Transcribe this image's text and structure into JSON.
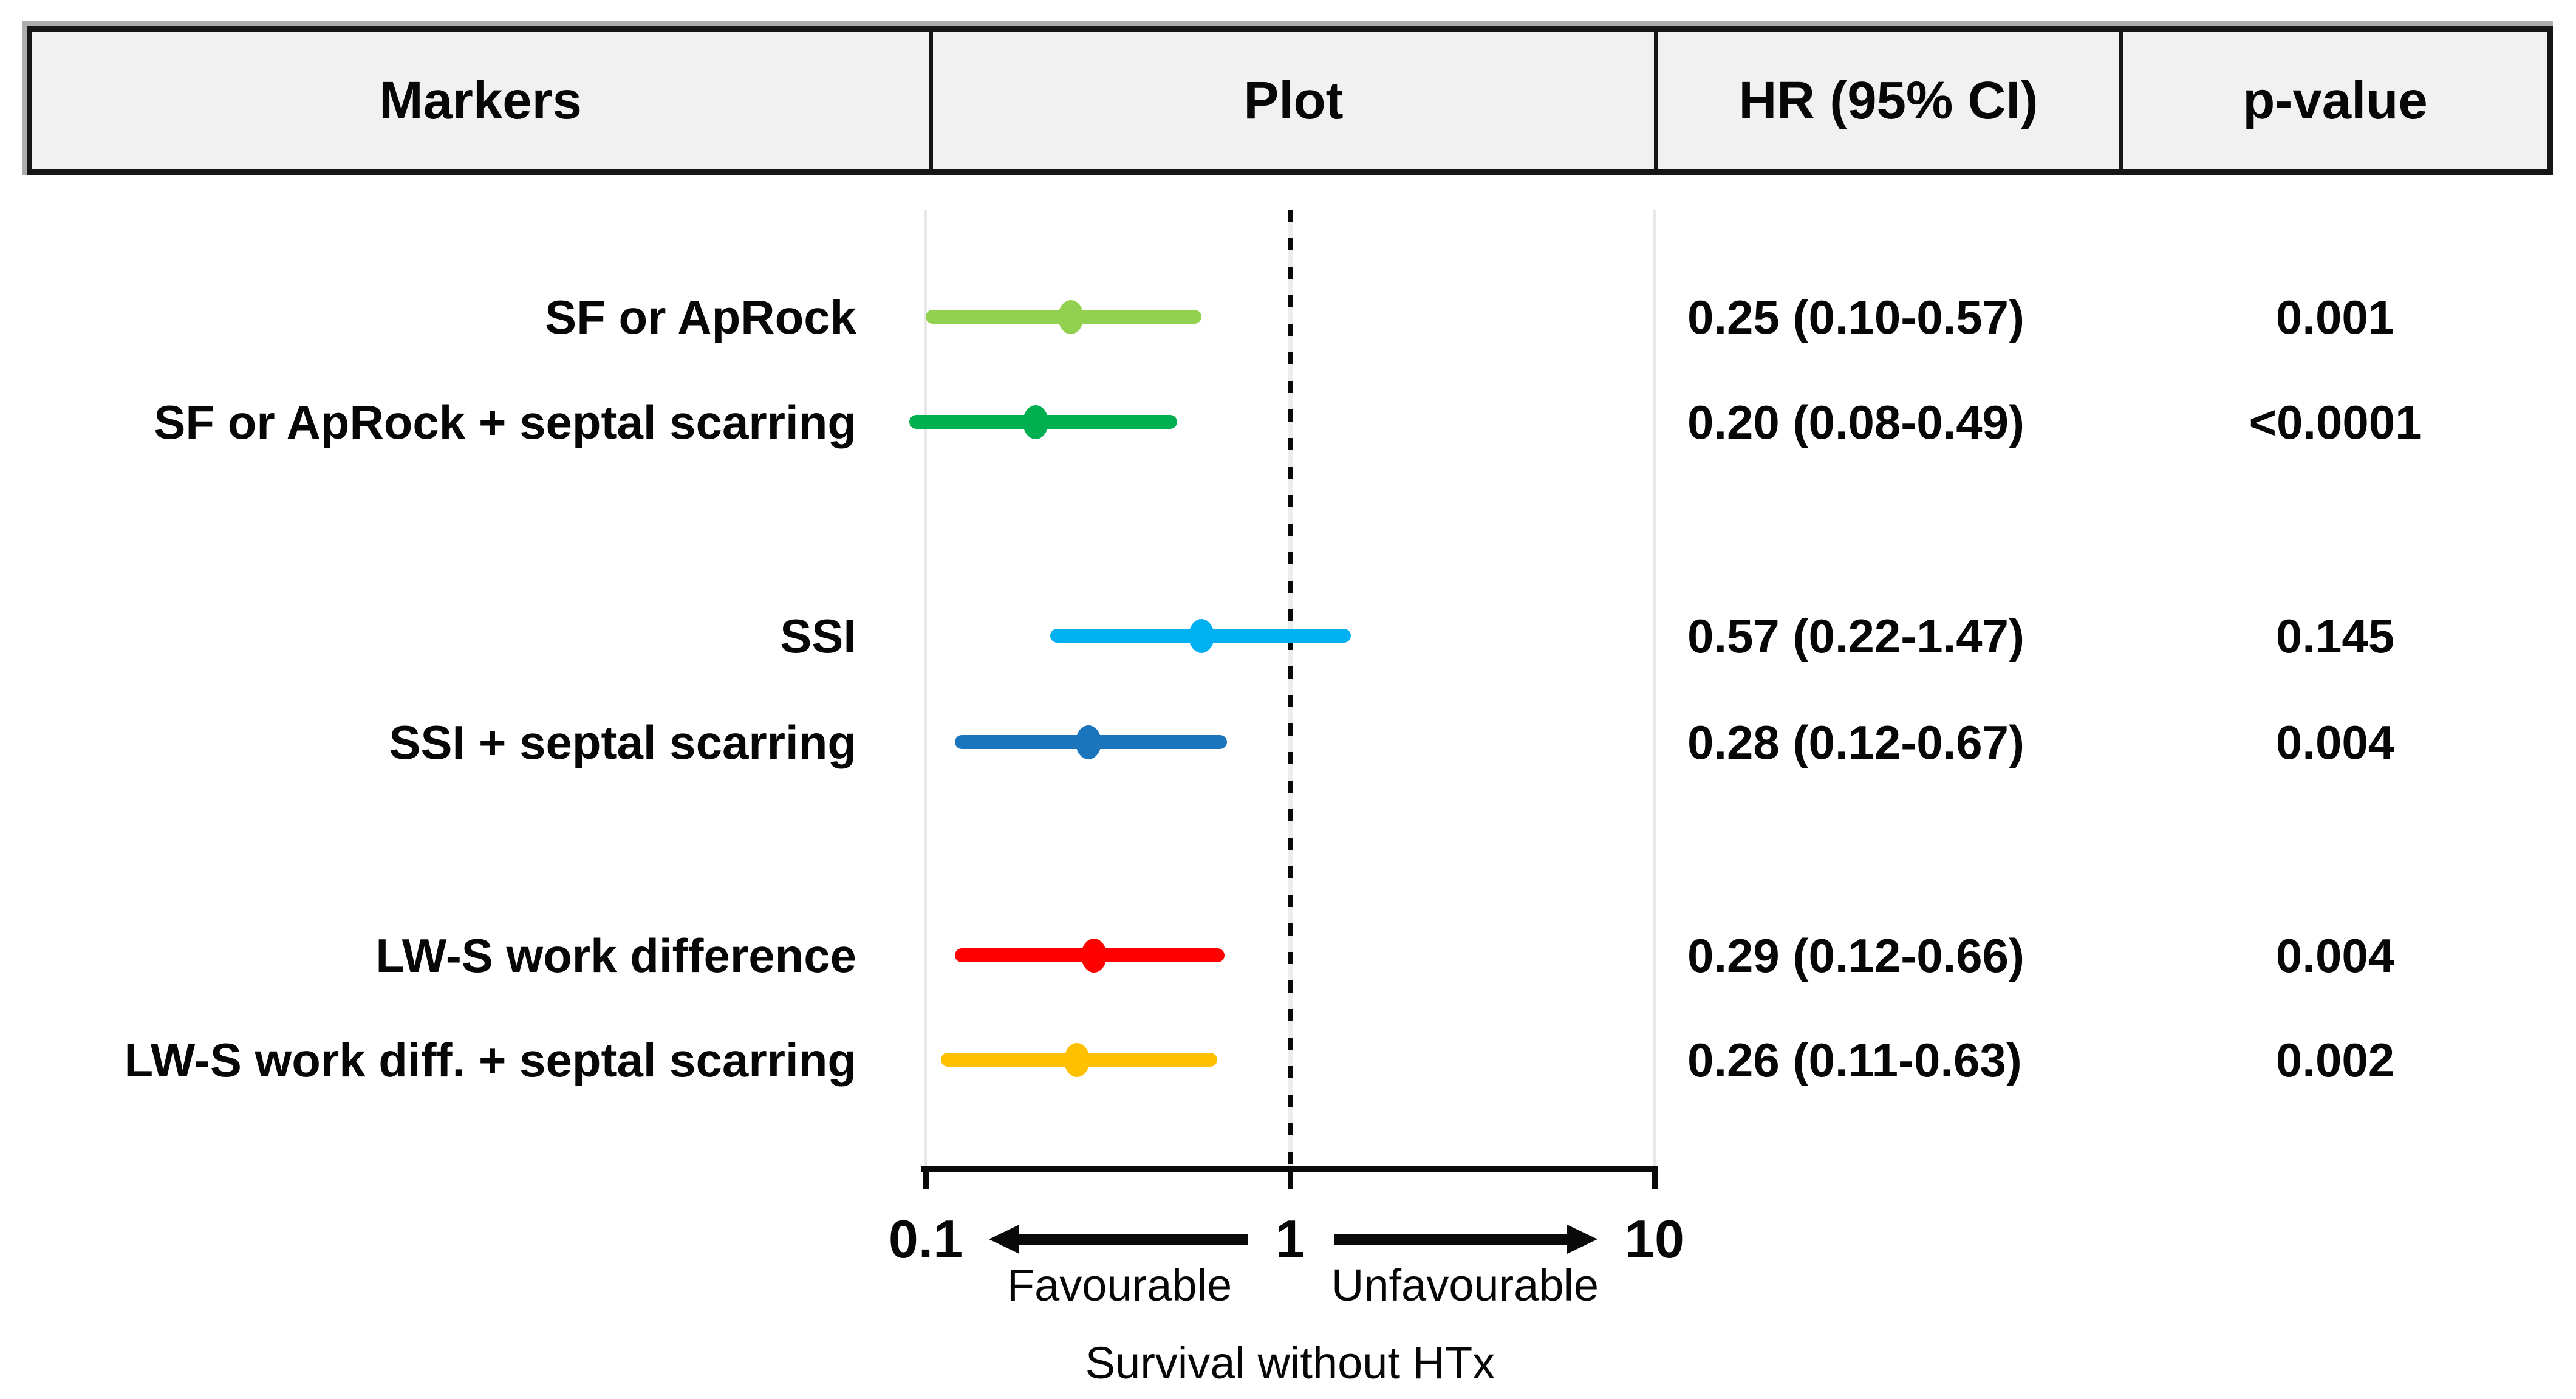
{
  "colors": {
    "header_bg": "#F1F1F1",
    "border": "#161616",
    "panel_guide": "#E8E8E8",
    "reference_line": "#0A0A0A"
  },
  "chart_data": {
    "type": "forest",
    "columns": [
      "Markers",
      "Plot",
      "HR (95% CI)",
      "p-value"
    ],
    "x_scale": "log10",
    "x_range": [
      0.1,
      10
    ],
    "x_ticks": [
      "0.1",
      "1",
      "10"
    ],
    "x_tick_values": [
      0.1,
      1,
      10
    ],
    "reference_value": 1,
    "direction_labels": {
      "left": "Favourable",
      "right": "Unfavourable"
    },
    "xlabel": "Survival without HTx",
    "rows": [
      {
        "label": "SF or ApRock",
        "hr": 0.25,
        "ci_low": 0.1,
        "ci_high": 0.57,
        "hr_text": "0.25 (0.10-0.57)",
        "p": "0.001",
        "color": "#92D050",
        "group": 1
      },
      {
        "label": "SF or ApRock + septal scarring",
        "hr": 0.2,
        "ci_low": 0.08,
        "ci_high": 0.49,
        "hr_text": "0.20 (0.08-0.49)",
        "p": "<0.0001",
        "color": "#00B050",
        "group": 1
      },
      {
        "label": "SSI",
        "hr": 0.57,
        "ci_low": 0.22,
        "ci_high": 1.47,
        "hr_text": "0.57 (0.22-1.47)",
        "p": "0.145",
        "color": "#00B0F0",
        "group": 2
      },
      {
        "label": "SSI + septal scarring",
        "hr": 0.28,
        "ci_low": 0.12,
        "ci_high": 0.67,
        "hr_text": "0.28 (0.12-0.67)",
        "p": "0.004",
        "color": "#1B75BC",
        "group": 2
      },
      {
        "label": "LW-S work difference",
        "hr": 0.29,
        "ci_low": 0.12,
        "ci_high": 0.66,
        "hr_text": "0.29 (0.12-0.66)",
        "p": "0.004",
        "color": "#FF0000",
        "group": 3
      },
      {
        "label": "LW-S work diff. + septal scarring",
        "hr": 0.26,
        "ci_low": 0.11,
        "ci_high": 0.63,
        "hr_text": "0.26 (0.11-0.63)",
        "p": "0.002",
        "color": "#FFC000",
        "group": 3
      }
    ]
  }
}
